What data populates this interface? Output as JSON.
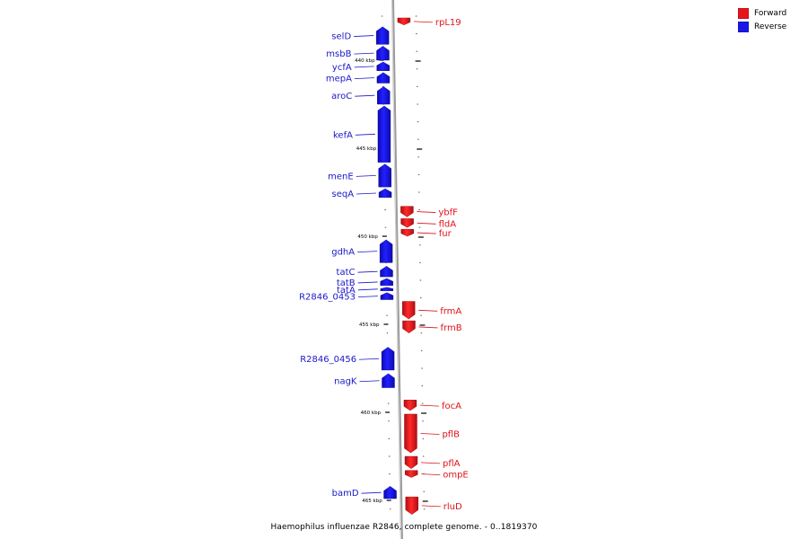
{
  "legend": {
    "forward_label": "Forward",
    "reverse_label": "Reverse",
    "forward_color": "#e8141a",
    "reverse_color": "#1a18e8"
  },
  "caption": "Haemophilus influenzae R2846, complete genome. - 0..1819370",
  "axis_ticks": [
    {
      "label": "440 kbp",
      "kbp": 440
    },
    {
      "label": "445 kbp",
      "kbp": 445
    },
    {
      "label": "450 kbp",
      "kbp": 450
    },
    {
      "label": "455 kbp",
      "kbp": 455
    },
    {
      "label": "460 kbp",
      "kbp": 460
    },
    {
      "label": "465 kbp",
      "kbp": 465
    }
  ],
  "genes_forward": [
    {
      "name": "rpL19",
      "start": 437.6,
      "end": 438.0
    },
    {
      "name": "ybfF",
      "start": 448.3,
      "end": 448.9
    },
    {
      "name": "fldA",
      "start": 449.0,
      "end": 449.5
    },
    {
      "name": "fur",
      "start": 449.6,
      "end": 450.0
    },
    {
      "name": "frmA",
      "start": 453.7,
      "end": 454.7
    },
    {
      "name": "frmB",
      "start": 454.8,
      "end": 455.5
    },
    {
      "name": "focA",
      "start": 459.3,
      "end": 459.9
    },
    {
      "name": "pflB",
      "start": 460.1,
      "end": 462.3
    },
    {
      "name": "pflA",
      "start": 462.5,
      "end": 463.2
    },
    {
      "name": "ompE",
      "start": 463.3,
      "end": 463.7
    },
    {
      "name": "rluD",
      "start": 464.8,
      "end": 465.8
    }
  ],
  "genes_reverse": [
    {
      "name": "selD",
      "start": 438.1,
      "end": 439.1
    },
    {
      "name": "msbB",
      "start": 439.2,
      "end": 440.0
    },
    {
      "name": "ycfA",
      "start": 440.1,
      "end": 440.6
    },
    {
      "name": "mepA",
      "start": 440.7,
      "end": 441.3
    },
    {
      "name": "aroC",
      "start": 441.5,
      "end": 442.5
    },
    {
      "name": "kefA",
      "start": 442.6,
      "end": 445.8
    },
    {
      "name": "menE",
      "start": 445.9,
      "end": 447.2
    },
    {
      "name": "seqA",
      "start": 447.3,
      "end": 447.8
    },
    {
      "name": "gdhA",
      "start": 450.2,
      "end": 451.5
    },
    {
      "name": "tatC",
      "start": 451.7,
      "end": 452.3
    },
    {
      "name": "tatB",
      "start": 452.4,
      "end": 452.8
    },
    {
      "name": "tatA",
      "start": 452.9,
      "end": 453.1
    },
    {
      "name": "R2846_0453",
      "start": 453.2,
      "end": 453.6
    },
    {
      "name": "R2846_0456",
      "start": 456.3,
      "end": 457.6
    },
    {
      "name": "nagK",
      "start": 457.8,
      "end": 458.6
    },
    {
      "name": "bamD",
      "start": 464.2,
      "end": 464.9
    }
  ]
}
